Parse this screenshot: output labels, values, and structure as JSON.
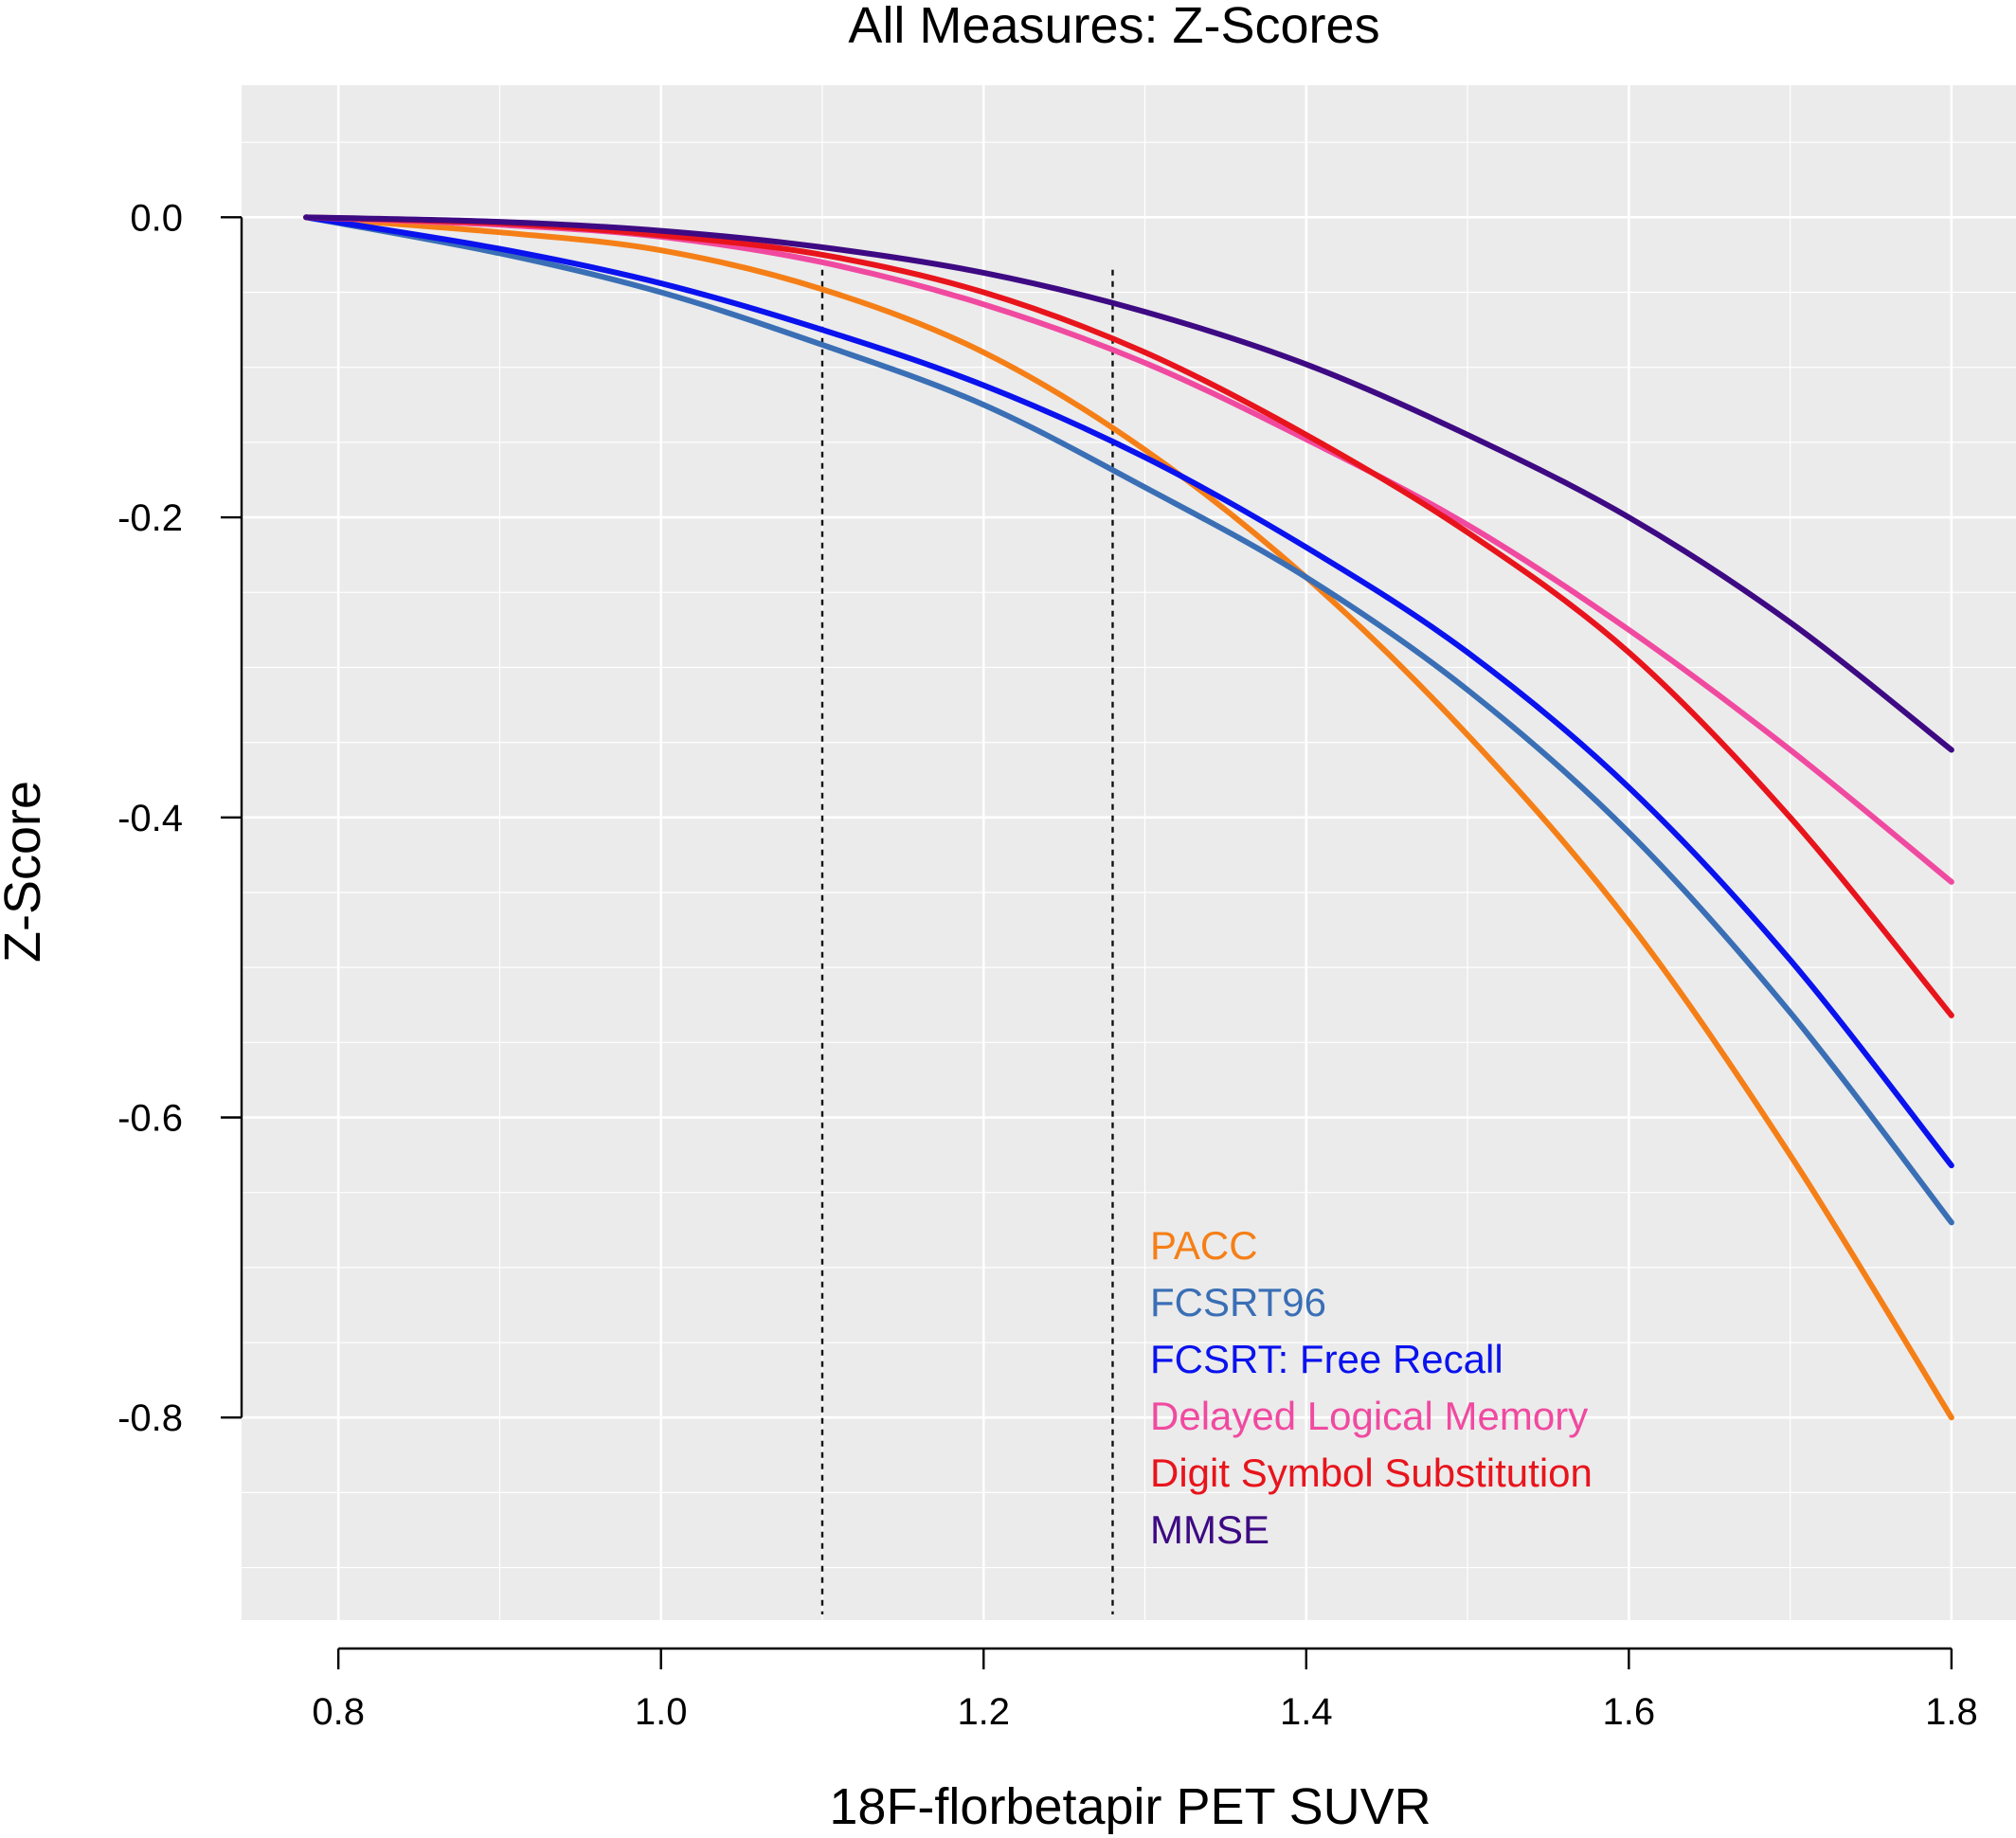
{
  "chart_data": {
    "type": "line",
    "title": "All Measures: Z-Scores",
    "xlabel": "18F-florbetapir PET SUVR",
    "ylabel": "Z-Score",
    "xlim": [
      0.74,
      1.84
    ],
    "ylim": [
      -0.935,
      0.088
    ],
    "xticks": [
      0.8,
      1.0,
      1.2,
      1.4,
      1.6,
      1.8
    ],
    "xtick_labels": [
      "0.8",
      "1.0",
      "1.2",
      "1.4",
      "1.6",
      "1.8"
    ],
    "xminor_grid": [
      0.9,
      1.1,
      1.3,
      1.5,
      1.7
    ],
    "yticks": [
      0.0,
      -0.2,
      -0.4,
      -0.6,
      -0.8
    ],
    "ytick_labels": [
      "0.0",
      "-0.2",
      "-0.4",
      "-0.6",
      "-0.8"
    ],
    "yminor_grid": [
      0.05,
      -0.05,
      -0.1,
      -0.15,
      -0.25,
      -0.3,
      -0.35,
      -0.45,
      -0.5,
      -0.55,
      -0.65,
      -0.7,
      -0.75,
      -0.85,
      -0.9
    ],
    "grid": true,
    "background": "#ebebeb",
    "reference_lines": [
      {
        "x": 1.1,
        "style": "dotted"
      },
      {
        "x": 1.28,
        "style": "dotted"
      }
    ],
    "legend_position": "bottom-center",
    "x": [
      0.78,
      0.9,
      1.0,
      1.1,
      1.2,
      1.3,
      1.4,
      1.5,
      1.6,
      1.7,
      1.8
    ],
    "series": [
      {
        "name": "PACC",
        "color": "#f57f17",
        "values": [
          0.0,
          -0.01,
          -0.022,
          -0.048,
          -0.09,
          -0.155,
          -0.24,
          -0.345,
          -0.47,
          -0.625,
          -0.8
        ]
      },
      {
        "name": "FCSRT96",
        "color": "#3a6fb5",
        "values": [
          0.0,
          -0.024,
          -0.05,
          -0.085,
          -0.125,
          -0.18,
          -0.24,
          -0.315,
          -0.41,
          -0.53,
          -0.67
        ]
      },
      {
        "name": "FCSRT: Free Recall",
        "color": "#0a12ee",
        "values": [
          0.0,
          -0.021,
          -0.044,
          -0.075,
          -0.112,
          -0.16,
          -0.22,
          -0.29,
          -0.38,
          -0.495,
          -0.632
        ]
      },
      {
        "name": "Delayed Logical Memory",
        "color": "#f04aa0",
        "values": [
          0.0,
          -0.005,
          -0.013,
          -0.03,
          -0.058,
          -0.097,
          -0.148,
          -0.205,
          -0.275,
          -0.355,
          -0.443
        ]
      },
      {
        "name": "Digit Symbol Substitution",
        "color": "#e8141c",
        "values": [
          0.0,
          -0.004,
          -0.012,
          -0.025,
          -0.05,
          -0.09,
          -0.145,
          -0.21,
          -0.29,
          -0.4,
          -0.532
        ]
      },
      {
        "name": "MMSE",
        "color": "#3e0a83",
        "values": [
          0.0,
          -0.003,
          -0.009,
          -0.02,
          -0.037,
          -0.063,
          -0.098,
          -0.145,
          -0.2,
          -0.27,
          -0.355
        ]
      }
    ]
  }
}
